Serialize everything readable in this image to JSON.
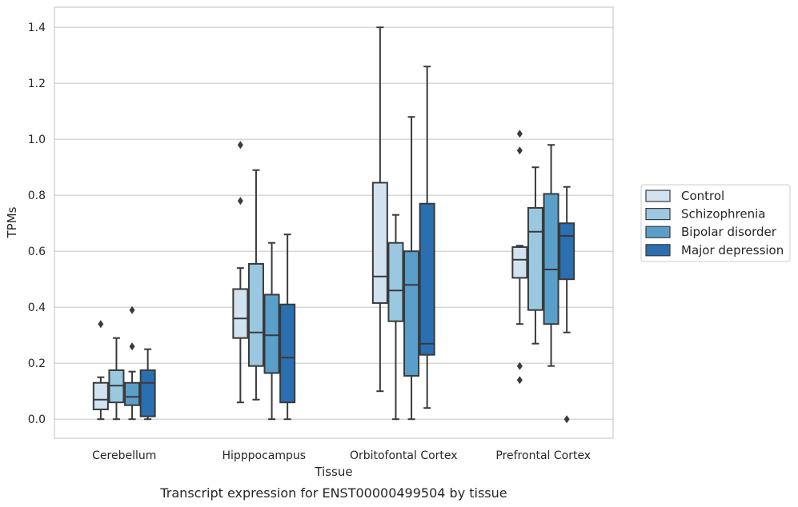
{
  "chart_data": {
    "type": "box",
    "caption": "Transcript expression for ENST00000499504 by tissue",
    "xlabel": "Tissue",
    "ylabel": "TPMs",
    "ylim": [
      -0.068,
      1.472
    ],
    "yticks": [
      "0.0",
      "0.2",
      "0.4",
      "0.6",
      "0.8",
      "1.0",
      "1.2",
      "1.4"
    ],
    "grid": "horizontal",
    "legend_position": "right",
    "categories": [
      "Cerebellum",
      "Hipppocampus",
      "Orbitofontal Cortex",
      "Prefrontal Cortex"
    ],
    "series": [
      {
        "name": "Control",
        "color": "#d1e2f1",
        "boxes": [
          {
            "whisker_low": 0.0,
            "q1": 0.035,
            "median": 0.07,
            "q3": 0.13,
            "whisker_high": 0.15,
            "outliers": [
              0.34
            ]
          },
          {
            "whisker_low": 0.06,
            "q1": 0.29,
            "median": 0.36,
            "q3": 0.465,
            "whisker_high": 0.54,
            "outliers": [
              0.98,
              0.78
            ]
          },
          {
            "whisker_low": 0.1,
            "q1": 0.415,
            "median": 0.51,
            "q3": 0.845,
            "whisker_high": 1.4,
            "outliers": []
          },
          {
            "whisker_low": 0.34,
            "q1": 0.505,
            "median": 0.57,
            "q3": 0.615,
            "whisker_high": 0.62,
            "outliers": [
              1.02,
              0.96,
              0.19,
              0.14
            ]
          }
        ]
      },
      {
        "name": "Schizophrenia",
        "color": "#9ac8e0",
        "boxes": [
          {
            "whisker_low": 0.0,
            "q1": 0.06,
            "median": 0.12,
            "q3": 0.175,
            "whisker_high": 0.29,
            "outliers": []
          },
          {
            "whisker_low": 0.07,
            "q1": 0.19,
            "median": 0.31,
            "q3": 0.555,
            "whisker_high": 0.89,
            "outliers": []
          },
          {
            "whisker_low": 0.0,
            "q1": 0.35,
            "median": 0.46,
            "q3": 0.63,
            "whisker_high": 0.73,
            "outliers": []
          },
          {
            "whisker_low": 0.27,
            "q1": 0.39,
            "median": 0.67,
            "q3": 0.755,
            "whisker_high": 0.9,
            "outliers": []
          }
        ]
      },
      {
        "name": "Bipolar disorder",
        "color": "#5a9fc9",
        "boxes": [
          {
            "whisker_low": 0.0,
            "q1": 0.05,
            "median": 0.08,
            "q3": 0.13,
            "whisker_high": 0.17,
            "outliers": [
              0.39,
              0.26
            ]
          },
          {
            "whisker_low": 0.0,
            "q1": 0.165,
            "median": 0.3,
            "q3": 0.445,
            "whisker_high": 0.63,
            "outliers": []
          },
          {
            "whisker_low": 0.0,
            "q1": 0.155,
            "median": 0.48,
            "q3": 0.6,
            "whisker_high": 1.08,
            "outliers": []
          },
          {
            "whisker_low": 0.19,
            "q1": 0.34,
            "median": 0.535,
            "q3": 0.805,
            "whisker_high": 0.98,
            "outliers": []
          }
        ]
      },
      {
        "name": "Major depression",
        "color": "#2a6fb0",
        "boxes": [
          {
            "whisker_low": 0.0,
            "q1": 0.01,
            "median": 0.13,
            "q3": 0.175,
            "whisker_high": 0.25,
            "outliers": []
          },
          {
            "whisker_low": 0.0,
            "q1": 0.06,
            "median": 0.22,
            "q3": 0.41,
            "whisker_high": 0.66,
            "outliers": []
          },
          {
            "whisker_low": 0.04,
            "q1": 0.23,
            "median": 0.27,
            "q3": 0.77,
            "whisker_high": 1.26,
            "outliers": []
          },
          {
            "whisker_low": 0.31,
            "q1": 0.5,
            "median": 0.655,
            "q3": 0.7,
            "whisker_high": 0.83,
            "outliers": [
              0.0
            ]
          }
        ]
      }
    ]
  }
}
